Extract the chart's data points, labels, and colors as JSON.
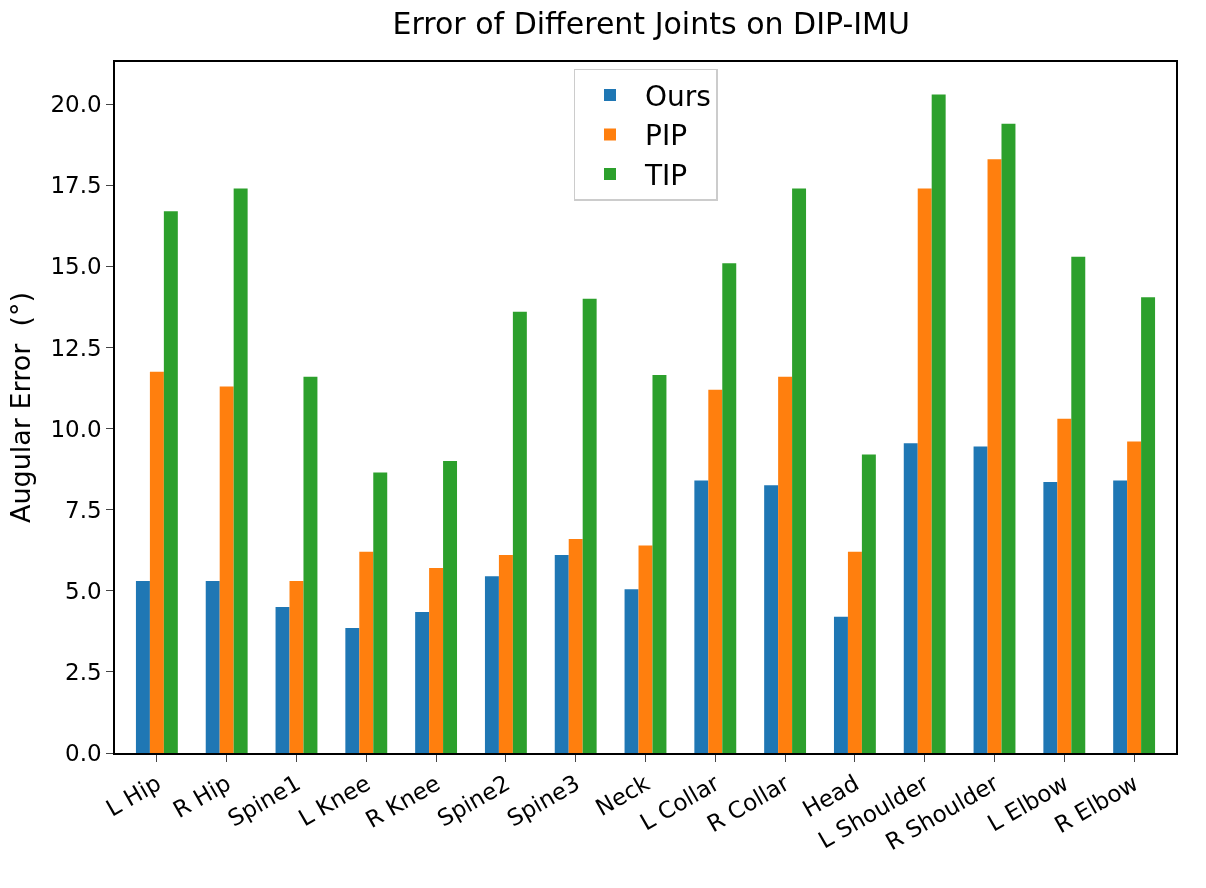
{
  "chart_data": {
    "type": "bar",
    "title": "Error of Different Joints on DIP-IMU",
    "ylabel": "Augular Error  (°)",
    "categories": [
      "L Hip",
      "R Hip",
      "Spine1",
      "L Knee",
      "R Knee",
      "Spine2",
      "Spine3",
      "Neck",
      "L Collar",
      "R Collar",
      "Head",
      "L Shoulder",
      "R Shoulder",
      "L Elbow",
      "R Elbow"
    ],
    "series": [
      {
        "name": "Ours",
        "color": "#1f77b4",
        "values": [
          5.3,
          5.3,
          4.5,
          3.85,
          4.35,
          5.45,
          6.1,
          5.05,
          8.4,
          8.25,
          4.2,
          9.55,
          9.45,
          8.35,
          8.4
        ]
      },
      {
        "name": "PIP",
        "color": "#ff7f0e",
        "values": [
          11.75,
          11.3,
          5.3,
          6.2,
          5.7,
          6.1,
          6.6,
          6.4,
          11.2,
          11.6,
          6.2,
          17.4,
          18.3,
          10.3,
          9.6
        ]
      },
      {
        "name": "TIP",
        "color": "#2ca02c",
        "values": [
          16.7,
          17.4,
          11.6,
          8.65,
          9.0,
          13.6,
          14.0,
          11.65,
          15.1,
          17.4,
          9.2,
          20.3,
          19.4,
          15.3,
          14.05
        ]
      }
    ],
    "ylim": [
      0,
      21.3
    ],
    "yticks": [
      {
        "value": 0,
        "label": "0.0"
      },
      {
        "value": 2.5,
        "label": "2.5"
      },
      {
        "value": 5,
        "label": "5.0"
      },
      {
        "value": 7.5,
        "label": "7.5"
      },
      {
        "value": 10,
        "label": "10.0"
      },
      {
        "value": 12.5,
        "label": "12.5"
      },
      {
        "value": 15,
        "label": "15.0"
      },
      {
        "value": 17.5,
        "label": "17.5"
      },
      {
        "value": 20,
        "label": "20.0"
      }
    ],
    "grid": false,
    "legend": "top"
  }
}
